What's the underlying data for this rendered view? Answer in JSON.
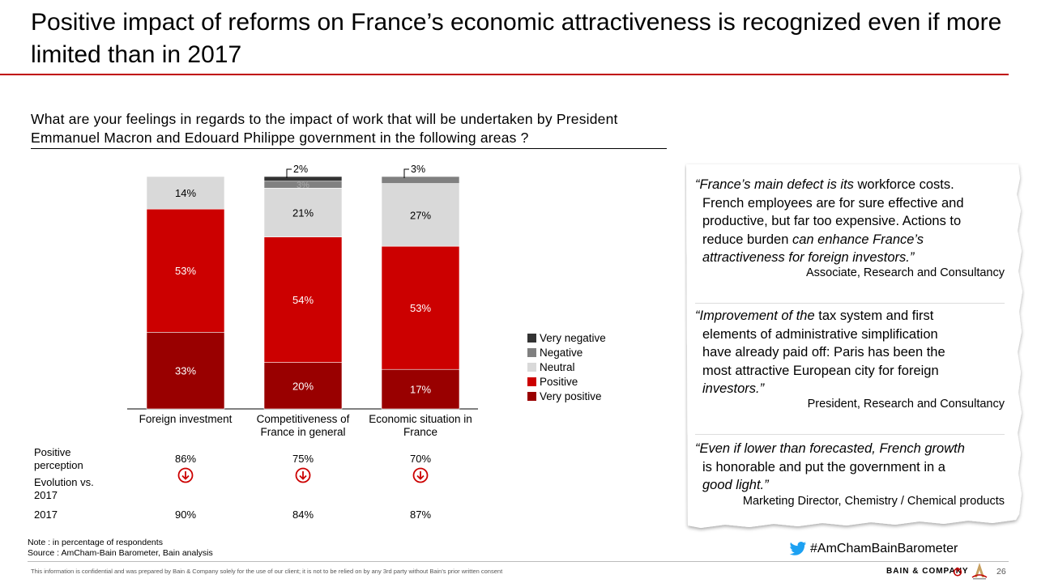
{
  "title": "Positive impact of reforms on France’s economic attractiveness is recognized even if more limited than in 2017",
  "question": "What are your feelings in regards to the impact of work that will be undertaken by President Emmanuel Macron and Edouard Philippe government in the following areas ?",
  "colors": {
    "very_negative": "#333333",
    "negative": "#808080",
    "neutral": "#d9d9d9",
    "positive": "#cc0000",
    "very_positive": "#990000",
    "accent": "#c00000"
  },
  "chart_data": {
    "type": "bar",
    "stacked": true,
    "categories": [
      "Foreign investment",
      "Competitiveness of France in general",
      "Economic situation in France"
    ],
    "category_lines": [
      [
        "Foreign investment"
      ],
      [
        "Competitiveness of",
        "France in general"
      ],
      [
        "Economic situation in",
        "France"
      ]
    ],
    "series": [
      {
        "name": "Very positive",
        "values": [
          33,
          20,
          17
        ],
        "labels": [
          "33%",
          "20%",
          "17%"
        ]
      },
      {
        "name": "Positive",
        "values": [
          53,
          54,
          53
        ],
        "labels": [
          "53%",
          "54%",
          "53%"
        ]
      },
      {
        "name": "Neutral",
        "values": [
          14,
          21,
          27
        ],
        "labels": [
          "14%",
          "21%",
          "27%"
        ]
      },
      {
        "name": "Negative",
        "values": [
          0,
          3,
          3
        ],
        "labels": [
          "",
          "3%",
          "3%"
        ]
      },
      {
        "name": "Very negative",
        "values": [
          0,
          2,
          0
        ],
        "labels": [
          "",
          "2%",
          ""
        ]
      }
    ],
    "legend": [
      "Very negative",
      "Negative",
      "Neutral",
      "Positive",
      "Very positive"
    ],
    "legend_placement": "right",
    "ylim": [
      0,
      100
    ],
    "grid": false
  },
  "table": {
    "positive_label": "Positive perception",
    "evolution_label": "Evolution vs. 2017",
    "year_label": "2017",
    "positive": [
      "86%",
      "75%",
      "70%"
    ],
    "evolution_icon": "down-arrow-circle-icon",
    "year": [
      "90%",
      "84%",
      "87%"
    ]
  },
  "notes": {
    "note": "Note : in percentage of respondents",
    "source": "Source : AmCham-Bain Barometer, Bain analysis"
  },
  "quotes": [
    {
      "lines": [
        [
          {
            "t": "“France’s main defect is its ",
            "i": true
          },
          {
            "t": "workforce costs.",
            "i": false
          }
        ],
        [
          {
            "t": "French employees are for sure effective and",
            "i": false
          }
        ],
        [
          {
            "t": "productive, but far too expensive. Actions to",
            "i": false
          }
        ],
        [
          {
            "t": "reduce burden ",
            "i": false
          },
          {
            "t": "can enhance France’s",
            "i": true
          }
        ],
        [
          {
            "t": "attractiveness for foreign investors.”",
            "i": true
          }
        ]
      ],
      "attribution": "Associate, Research and Consultancy"
    },
    {
      "lines": [
        [
          {
            "t": "“Improvement of the ",
            "i": true
          },
          {
            "t": "tax system and first",
            "i": false
          }
        ],
        [
          {
            "t": "elements of administrative simplification",
            "i": false
          }
        ],
        [
          {
            "t": "have already paid off: Paris has been the",
            "i": false
          }
        ],
        [
          {
            "t": "most attractive European city for foreign",
            "i": false
          }
        ],
        [
          {
            "t": "investors.”",
            "i": true
          }
        ]
      ],
      "attribution": "President, Research and Consultancy"
    },
    {
      "lines": [
        [
          {
            "t": "“Even if lower than forecasted, French growth",
            "i": true
          }
        ],
        [
          {
            "t": "is honorable and put the government in a",
            "i": false
          }
        ],
        [
          {
            "t": "good light.”",
            "i": true
          }
        ]
      ],
      "attribution": "Marketing Director, Chemistry / Chemical products"
    }
  ],
  "hashtag": "#AmChamBainBarometer",
  "footer": {
    "confidential": "This information is confidential and was prepared by Bain & Company solely for the use of our client; it is not to be relied on by any 3rd party without Bain's prior written consent",
    "brand": "BAIN & COMPANY",
    "page": "26"
  }
}
